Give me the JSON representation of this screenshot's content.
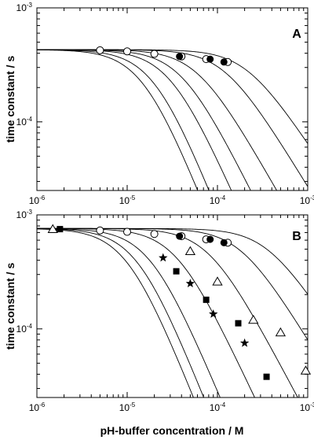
{
  "figure": {
    "xlabel": "pH-buffer concentration / M",
    "ylabel": "time constant / s"
  },
  "chart_data": [
    {
      "type": "scatter",
      "panel": "A",
      "panel_label": "A",
      "xlabel": "",
      "ylabel": "time constant / s",
      "xscale": "log",
      "yscale": "log",
      "xlim": [
        1e-06,
        0.001
      ],
      "ylim": [
        2.5e-05,
        0.001
      ],
      "x_ticks": [
        "10-6",
        "10-5",
        "10-4",
        "10-3"
      ],
      "y_ticks": [
        "10-4",
        "10-3"
      ],
      "series": [
        {
          "marker": "circle-open",
          "points": [
            [
              5e-06,
              0.000425
            ],
            [
              1e-05,
              0.000415
            ],
            [
              2e-05,
              0.000395
            ],
            [
              4e-05,
              0.000375
            ],
            [
              7.5e-05,
              0.000355
            ],
            [
              0.00013,
              0.000335
            ]
          ]
        },
        {
          "marker": "circle-filled",
          "points": [
            [
              3.8e-05,
              0.000375
            ],
            [
              8.3e-05,
              0.000355
            ],
            [
              0.000118,
              0.000335
            ]
          ]
        }
      ],
      "curves": [
        {
          "t0": 0.00043,
          "c0": 0.00021,
          "n": 0.6
        },
        {
          "t0": 0.00043,
          "c0": 0.00012,
          "n": 0.65
        },
        {
          "t0": 0.00043,
          "c0": 6e-05,
          "n": 0.7
        },
        {
          "t0": 0.00043,
          "c0": 4e-05,
          "n": 0.8
        },
        {
          "t0": 0.00043,
          "c0": 3e-05,
          "n": 0.9
        },
        {
          "t0": 0.00043,
          "c0": 2e-05,
          "n": 1.0
        },
        {
          "t0": 0.00043,
          "c0": 1.5e-05,
          "n": 1.0
        }
      ]
    },
    {
      "type": "scatter",
      "panel": "B",
      "panel_label": "B",
      "xlabel": "pH-buffer concentration / M",
      "ylabel": "time constant / s",
      "xscale": "log",
      "yscale": "log",
      "xlim": [
        1e-06,
        0.001
      ],
      "ylim": [
        2.5e-05,
        0.001
      ],
      "x_ticks": [
        "10-6",
        "10-5",
        "10-4",
        "10-3"
      ],
      "y_ticks": [
        "10-4",
        "10-3"
      ],
      "series": [
        {
          "marker": "circle-open",
          "points": [
            [
              5e-06,
              0.00073
            ],
            [
              1e-05,
              0.00071
            ],
            [
              2e-05,
              0.00068
            ],
            [
              4e-05,
              0.00065
            ],
            [
              7.5e-05,
              0.00061
            ],
            [
              0.00013,
              0.00057
            ]
          ]
        },
        {
          "marker": "circle-filled",
          "points": [
            [
              3.8e-05,
              0.00065
            ],
            [
              8.3e-05,
              0.00061
            ],
            [
              0.000118,
              0.00057
            ]
          ]
        },
        {
          "marker": "triangle-open",
          "points": [
            [
              1.5e-06,
              0.00075
            ],
            [
              5e-05,
              0.00048
            ],
            [
              0.0001,
              0.00026
            ],
            [
              0.00025,
              0.00012
            ],
            [
              0.0005,
              9.3e-05
            ],
            [
              0.00095,
              4.3e-05
            ]
          ]
        },
        {
          "marker": "square-filled",
          "points": [
            [
              1.8e-06,
              0.00075
            ],
            [
              3.5e-05,
              0.00032
            ],
            [
              7.5e-05,
              0.00018
            ],
            [
              0.00017,
              0.000112
            ],
            [
              0.00035,
              3.8e-05
            ]
          ]
        },
        {
          "marker": "star-filled",
          "points": [
            [
              2.5e-05,
              0.00042
            ],
            [
              5e-05,
              0.00025
            ],
            [
              9e-05,
              0.000135
            ],
            [
              0.0002,
              7.5e-05
            ]
          ]
        }
      ],
      "curves": [
        {
          "t0": 0.00076,
          "c0": 0.00035,
          "n": 0.6
        },
        {
          "t0": 0.00076,
          "c0": 0.00018,
          "n": 0.65
        },
        {
          "t0": 0.00076,
          "c0": 8e-05,
          "n": 0.75
        },
        {
          "t0": 0.00076,
          "c0": 3.5e-05,
          "n": 0.85
        },
        {
          "t0": 0.00076,
          "c0": 1.8e-05,
          "n": 0.95
        },
        {
          "t0": 0.00076,
          "c0": 1.3e-05,
          "n": 1.0
        },
        {
          "t0": 0.00076,
          "c0": 1e-05,
          "n": 1.0
        }
      ]
    }
  ]
}
